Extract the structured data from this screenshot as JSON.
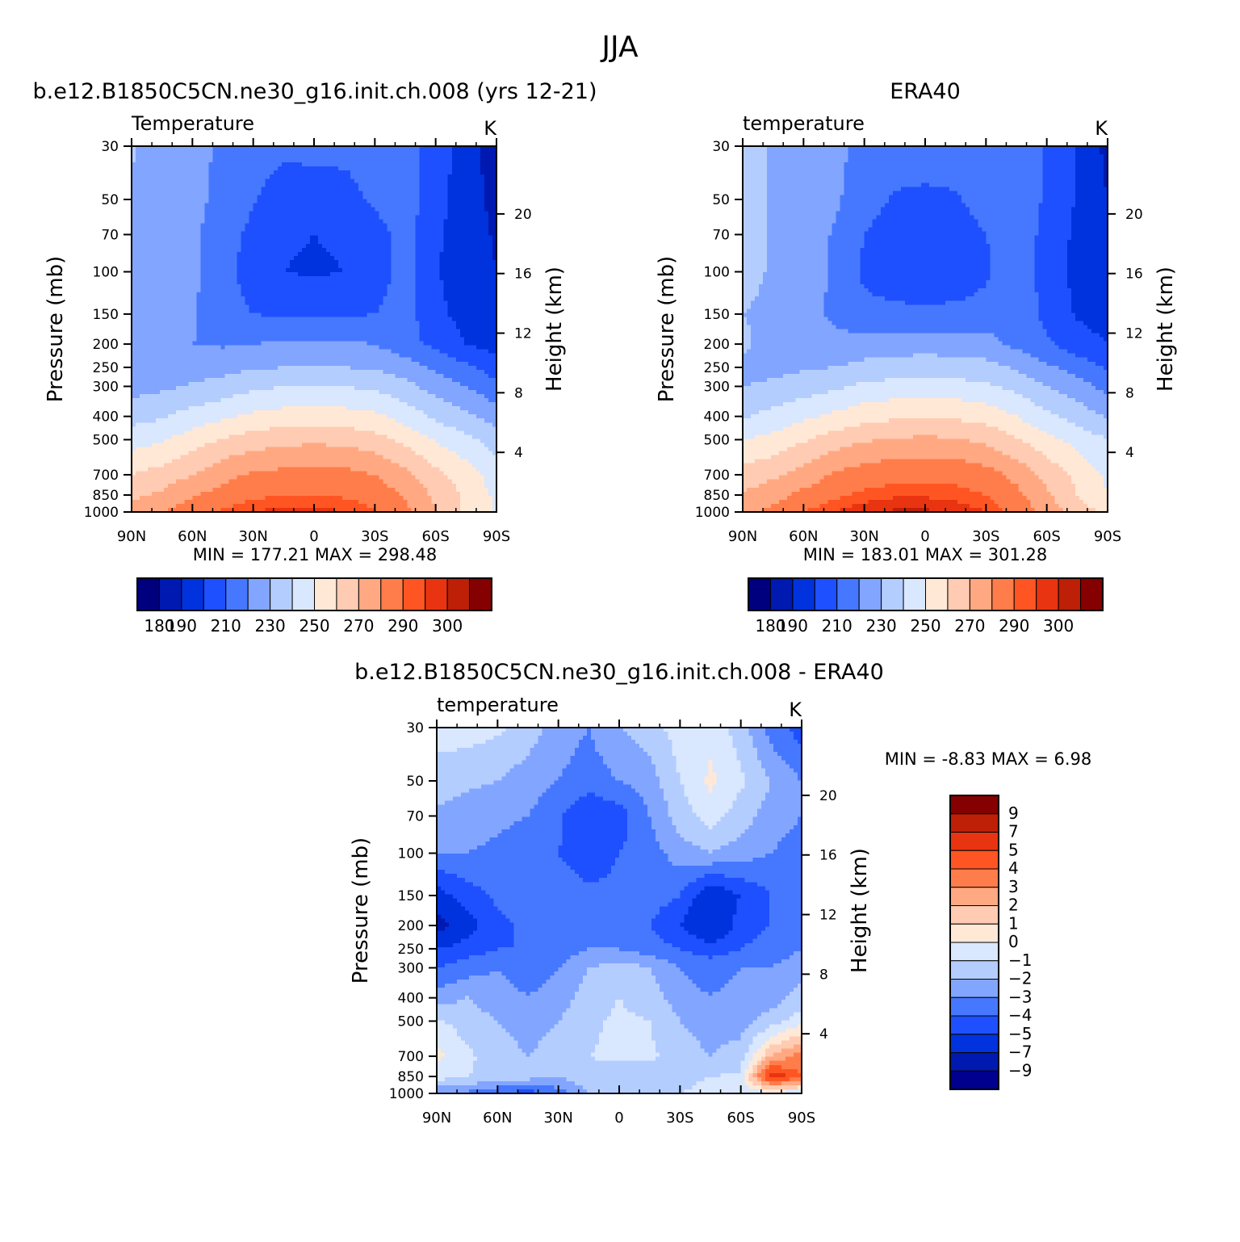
{
  "title": "JJA",
  "chart_data": [
    {
      "type": "heatmap",
      "title": "b.e12.B1850C5CN.ne30_g16.init.ch.008 (yrs 12-21)",
      "left_label": "Temperature",
      "right_label": "K",
      "ylabel": "Pressure (mb)",
      "ylabel_right": "Height (km)",
      "x_ticks": [
        "90N",
        "60N",
        "30N",
        "0",
        "30S",
        "60S",
        "90S"
      ],
      "y_ticks": [
        "30",
        "50",
        "70",
        "100",
        "150",
        "200",
        "250",
        "300",
        "400",
        "500",
        "700",
        "850",
        "1000"
      ],
      "y_ticks_right": [
        "20",
        "16",
        "12",
        "8",
        "4"
      ],
      "stats": "MIN = 177.21 MAX = 298.48",
      "colorbar_labels": [
        "180",
        "190",
        "210",
        "230",
        "250",
        "270",
        "290",
        "300"
      ],
      "field": {
        "lats": [
          90,
          75,
          60,
          45,
          30,
          15,
          0,
          -15,
          -30,
          -45,
          -60,
          -75,
          -90
        ],
        "pressures": [
          30,
          50,
          70,
          100,
          150,
          200,
          250,
          300,
          400,
          500,
          700,
          850,
          1000
        ],
        "temps": [
          [
            231,
            225,
            222,
            219,
            214,
            212,
            213,
            213,
            214,
            216,
            204,
            196,
            183
          ],
          [
            229,
            225,
            222,
            218,
            211,
            205,
            205,
            206,
            212,
            215,
            204,
            195,
            187
          ],
          [
            228,
            225,
            222,
            215,
            207,
            201,
            200,
            201,
            206,
            214,
            202,
            194,
            189
          ],
          [
            226,
            225,
            222,
            214,
            205,
            200,
            199,
            200,
            205,
            214,
            201,
            194,
            190
          ],
          [
            224,
            223,
            221,
            214,
            210,
            209,
            208,
            209,
            210,
            214,
            203,
            196,
            192
          ],
          [
            222,
            221,
            220,
            219,
            220,
            221,
            222,
            221,
            220,
            213,
            208,
            200,
            196
          ],
          [
            222,
            223,
            225,
            226,
            229,
            230,
            231,
            230,
            229,
            225,
            218,
            212,
            205
          ],
          [
            226,
            228,
            231,
            234,
            238,
            240,
            241,
            240,
            238,
            233,
            226,
            220,
            213
          ],
          [
            236,
            239,
            244,
            248,
            252,
            254,
            255,
            254,
            252,
            246,
            238,
            232,
            225
          ],
          [
            246,
            249,
            255,
            261,
            265,
            267,
            268,
            267,
            264,
            257,
            249,
            243,
            236
          ],
          [
            260,
            264,
            270,
            277,
            281,
            283,
            284,
            283,
            280,
            273,
            263,
            255,
            245
          ],
          [
            268,
            272,
            279,
            284,
            288,
            290,
            290,
            289,
            286,
            279,
            268,
            258,
            248
          ],
          [
            274,
            280,
            286,
            291,
            295,
            297,
            297,
            295,
            291,
            283,
            270,
            258,
            248
          ]
        ]
      }
    },
    {
      "type": "heatmap",
      "title": "ERA40",
      "left_label": "temperature",
      "right_label": "K",
      "ylabel": "Pressure (mb)",
      "ylabel_right": "Height (km)",
      "x_ticks": [
        "90N",
        "60N",
        "30N",
        "0",
        "30S",
        "60S",
        "90S"
      ],
      "y_ticks": [
        "30",
        "50",
        "70",
        "100",
        "150",
        "200",
        "250",
        "300",
        "400",
        "500",
        "700",
        "850",
        "1000"
      ],
      "y_ticks_right": [
        "20",
        "16",
        "12",
        "8",
        "4"
      ],
      "stats": "MIN = 183.01 MAX = 301.28",
      "colorbar_labels": [
        "180",
        "190",
        "210",
        "230",
        "250",
        "270",
        "290",
        "300"
      ],
      "field": {
        "lats": [
          90,
          75,
          60,
          45,
          30,
          15,
          0,
          -15,
          -30,
          -45,
          -60,
          -75,
          -90
        ],
        "pressures": [
          30,
          50,
          70,
          100,
          150,
          200,
          250,
          300,
          400,
          500,
          700,
          850,
          1000
        ],
        "temps": [
          [
            235,
            229,
            226,
            223,
            217,
            215,
            215,
            215,
            217,
            218,
            209,
            200,
            187
          ],
          [
            234,
            229,
            226,
            222,
            214,
            209,
            208,
            209,
            214,
            219,
            208,
            199,
            190
          ],
          [
            234,
            229,
            226,
            219,
            210,
            205,
            204,
            205,
            210,
            218,
            206,
            198,
            193
          ],
          [
            233,
            229,
            226,
            218,
            208,
            203,
            202,
            203,
            208,
            218,
            205,
            197,
            194
          ],
          [
            230,
            228,
            225,
            218,
            213,
            213,
            212,
            213,
            214,
            218,
            207,
            199,
            196
          ],
          [
            232,
            226,
            224,
            223,
            224,
            225,
            226,
            225,
            224,
            217,
            212,
            204,
            200
          ],
          [
            227,
            227,
            229,
            230,
            233,
            234,
            235,
            234,
            233,
            229,
            222,
            216,
            209
          ],
          [
            230,
            232,
            235,
            238,
            242,
            244,
            245,
            244,
            242,
            237,
            230,
            224,
            217
          ],
          [
            239,
            243,
            248,
            252,
            256,
            258,
            259,
            258,
            256,
            250,
            242,
            236,
            229
          ],
          [
            250,
            253,
            259,
            265,
            269,
            271,
            272,
            271,
            268,
            261,
            253,
            247,
            240
          ],
          [
            264,
            268,
            274,
            281,
            285,
            287,
            288,
            287,
            284,
            277,
            267,
            257,
            248
          ],
          [
            271,
            276,
            283,
            288,
            292,
            294,
            294,
            293,
            290,
            283,
            272,
            260,
            250
          ],
          [
            277,
            283,
            290,
            295,
            299,
            301,
            301,
            299,
            295,
            287,
            276,
            265,
            258
          ]
        ]
      }
    },
    {
      "type": "heatmap",
      "title": "b.e12.B1850C5CN.ne30_g16.init.ch.008 - ERA40",
      "left_label": "temperature",
      "right_label": "K",
      "ylabel": "Pressure (mb)",
      "ylabel_right": "Height (km)",
      "x_ticks": [
        "90N",
        "60N",
        "30N",
        "0",
        "30S",
        "60S",
        "90S"
      ],
      "y_ticks": [
        "30",
        "50",
        "70",
        "100",
        "150",
        "200",
        "250",
        "300",
        "400",
        "500",
        "700",
        "850",
        "1000"
      ],
      "y_ticks_right": [
        "20",
        "16",
        "12",
        "8",
        "4"
      ],
      "stats": "MIN = -8.83 MAX = 6.98",
      "colorbar_labels": [
        "9",
        "7",
        "5",
        "4",
        "3",
        "2",
        "1",
        "0",
        "-1",
        "-2",
        "-3",
        "-4",
        "-5",
        "-7",
        "-9"
      ],
      "field": {
        "lats": [
          90,
          75,
          60,
          45,
          30,
          15,
          0,
          -15,
          -30,
          -45,
          -60,
          -75,
          -90
        ],
        "pressures": [
          30,
          50,
          70,
          100,
          150,
          200,
          250,
          300,
          400,
          500,
          700,
          850,
          1000
        ],
        "temps": [
          [
            -0.5,
            -0.5,
            -0.8,
            -1.5,
            -2.5,
            -3.0,
            -2.0,
            -1.5,
            -0.5,
            -0.3,
            -1.5,
            -3.5,
            -4.5
          ],
          [
            -1.5,
            -1.8,
            -2.0,
            -2.5,
            -3.0,
            -3.5,
            -3.0,
            -2.5,
            -1.0,
            0.2,
            -0.8,
            -2.0,
            -3.0
          ],
          [
            -2.2,
            -2.5,
            -2.8,
            -3.0,
            -3.8,
            -5.0,
            -4.5,
            -3.0,
            -1.5,
            -0.5,
            -1.5,
            -2.5,
            -3.0
          ],
          [
            -3.0,
            -3.0,
            -3.2,
            -3.5,
            -4.0,
            -4.5,
            -4.0,
            -3.5,
            -2.5,
            -2.0,
            -2.5,
            -3.0,
            -3.5
          ],
          [
            -5.5,
            -4.5,
            -3.8,
            -3.5,
            -3.5,
            -3.8,
            -3.8,
            -3.5,
            -4.0,
            -6.0,
            -5.0,
            -4.0,
            -3.5
          ],
          [
            -8.0,
            -5.5,
            -4.2,
            -3.8,
            -3.5,
            -3.5,
            -4.0,
            -4.0,
            -5.0,
            -6.5,
            -4.5,
            -4.0,
            -3.5
          ],
          [
            -5.0,
            -4.5,
            -4.0,
            -4.0,
            -3.5,
            -3.0,
            -3.0,
            -3.5,
            -4.0,
            -4.5,
            -4.0,
            -3.5,
            -3.0
          ],
          [
            -4.0,
            -3.5,
            -3.0,
            -3.5,
            -3.0,
            -2.0,
            -1.5,
            -2.0,
            -3.0,
            -3.5,
            -3.0,
            -3.0,
            -2.5
          ],
          [
            -2.5,
            -2.0,
            -2.5,
            -3.0,
            -2.5,
            -1.5,
            -1.0,
            -1.5,
            -2.5,
            -3.0,
            -2.5,
            -2.5,
            -1.5
          ],
          [
            -0.8,
            -1.5,
            -2.0,
            -2.5,
            -2.0,
            -1.2,
            -0.8,
            -1.0,
            -2.0,
            -2.5,
            -2.5,
            -1.5,
            -0.5
          ],
          [
            0.3,
            -0.8,
            -1.5,
            -2.0,
            -1.5,
            -1.0,
            -0.8,
            -0.8,
            -1.5,
            -2.0,
            -1.5,
            2.0,
            3.5
          ],
          [
            -0.5,
            -1.0,
            -1.2,
            -1.5,
            -2.0,
            -1.2,
            -1.5,
            -1.5,
            -1.2,
            -1.0,
            -0.8,
            6.0,
            4.0
          ],
          [
            -3.0,
            -3.2,
            -4.0,
            -4.5,
            -3.5,
            -2.0,
            -1.5,
            -1.0,
            -1.0,
            -0.8,
            -0.5,
            -0.5,
            -1.0
          ]
        ]
      }
    }
  ],
  "colors": {
    "abs_palette": [
      "#00007f",
      "#0019b0",
      "#0032dd",
      "#1e50ff",
      "#4678ff",
      "#82a5ff",
      "#b4cdff",
      "#d9e7ff",
      "#ffe8d6",
      "#ffcbb2",
      "#ffa882",
      "#ff7d4a",
      "#ff5522",
      "#e83410",
      "#bd1f07",
      "#850000"
    ],
    "abs_levels": [
      180,
      190,
      200,
      210,
      220,
      230,
      240,
      250,
      260,
      270,
      280,
      290,
      295,
      300,
      305
    ],
    "diff_palette": [
      "#00008f",
      "#0019b0",
      "#0032dd",
      "#1e50ff",
      "#4678ff",
      "#82a5ff",
      "#b4cdff",
      "#d9e7ff",
      "#ffe8d6",
      "#ffcbb2",
      "#ffa882",
      "#ff7d4a",
      "#ff5522",
      "#e83410",
      "#bd1f07",
      "#850000"
    ],
    "diff_levels": [
      -9,
      -7,
      -5,
      -4,
      -3,
      -2,
      -1,
      0,
      1,
      2,
      3,
      4,
      5,
      7,
      9
    ]
  }
}
